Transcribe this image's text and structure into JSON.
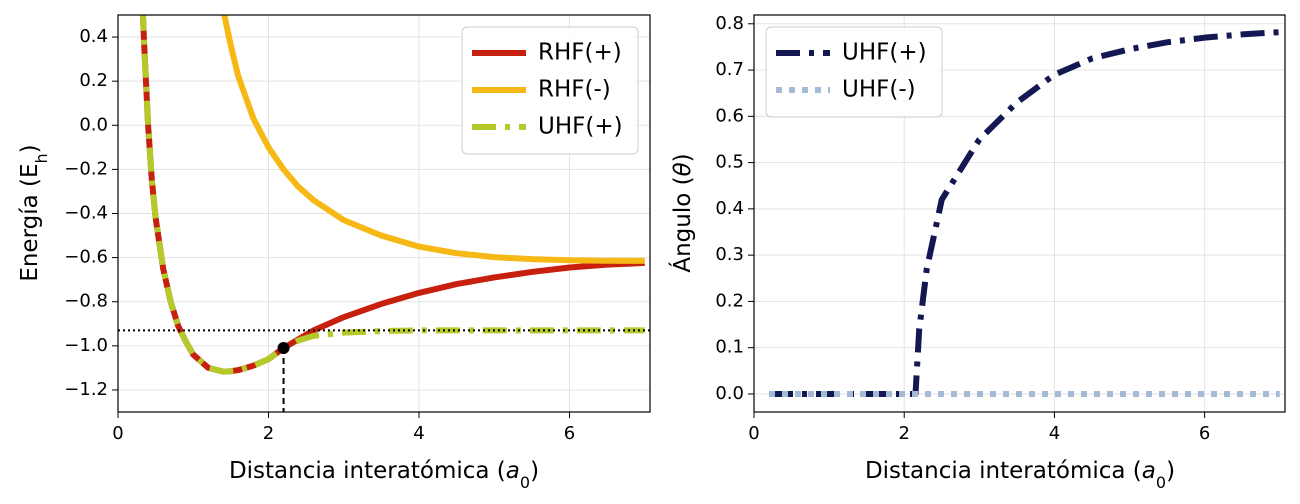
{
  "chart_data": [
    {
      "type": "line",
      "x": [
        0.3,
        0.35,
        0.4,
        0.45,
        0.5,
        0.6,
        0.7,
        0.8,
        0.9,
        1.0,
        1.2,
        1.4,
        1.5,
        1.6,
        1.8,
        2.0,
        2.2,
        2.4,
        2.6,
        3.0,
        3.5,
        4.0,
        4.5,
        5.0,
        5.5,
        6.0,
        6.5,
        7.0
      ],
      "series": [
        {
          "name": "RHF(+)",
          "color": "#c8200e",
          "style": "solid",
          "values": [
            0.75,
            0.35,
            0.0,
            -0.25,
            -0.42,
            -0.65,
            -0.8,
            -0.91,
            -0.98,
            -1.04,
            -1.1,
            -1.117,
            -1.115,
            -1.11,
            -1.09,
            -1.06,
            -1.01,
            -0.97,
            -0.93,
            -0.87,
            -0.81,
            -0.76,
            -0.72,
            -0.69,
            -0.665,
            -0.645,
            -0.632,
            -0.624
          ]
        },
        {
          "name": "RHF(-)",
          "color": "#f5b814",
          "style": "solid",
          "values": [
            null,
            null,
            null,
            null,
            null,
            null,
            null,
            null,
            null,
            null,
            null,
            0.52,
            0.36,
            0.22,
            0.03,
            -0.1,
            -0.2,
            -0.28,
            -0.34,
            -0.43,
            -0.5,
            -0.55,
            -0.58,
            -0.598,
            -0.607,
            -0.612,
            -0.614,
            -0.615
          ]
        },
        {
          "name": "UHF(+)",
          "color": "#b5c92a",
          "style": "dashdot",
          "values": [
            0.75,
            0.35,
            0.0,
            -0.25,
            -0.42,
            -0.65,
            -0.8,
            -0.91,
            -0.98,
            -1.04,
            -1.1,
            -1.117,
            -1.115,
            -1.11,
            -1.09,
            -1.06,
            -1.01,
            -0.975,
            -0.955,
            -0.94,
            -0.933,
            -0.93,
            -0.93,
            -0.93,
            -0.93,
            -0.93,
            -0.93,
            -0.93
          ]
        }
      ],
      "xlabel": [
        "Distancia interatómica (",
        "a",
        "0",
        ")"
      ],
      "ylabel": [
        "Energía (E",
        "h",
        ")"
      ],
      "xlim": [
        0,
        7.07
      ],
      "ylim": [
        -1.3,
        0.5
      ],
      "xticks": [
        0,
        2,
        4,
        6
      ],
      "yticks": [
        {
          "value": -1.2,
          "label": "−1.2"
        },
        {
          "value": -1.0,
          "label": "−1.0"
        },
        {
          "value": -0.8,
          "label": "−0.8"
        },
        {
          "value": -0.6,
          "label": "−0.6"
        },
        {
          "value": -0.4,
          "label": "−0.4"
        },
        {
          "value": -0.2,
          "label": "−0.2"
        },
        {
          "value": 0,
          "label": "0.0"
        },
        0.2,
        0.4
      ],
      "grid": true,
      "legend": "upper right",
      "hline": -0.93,
      "vline": 2.2,
      "marker": {
        "x": 2.2,
        "y": -1.01
      }
    },
    {
      "type": "line",
      "x": [
        0.2,
        0.5,
        1.0,
        1.5,
        2.0,
        2.15,
        2.2,
        2.3,
        2.5,
        3.0,
        3.5,
        4.0,
        4.5,
        5.0,
        5.5,
        6.0,
        6.5,
        7.0
      ],
      "series": [
        {
          "name": "UHF(+)",
          "color": "#141852",
          "style": "dashdot",
          "values": [
            0,
            0,
            0,
            0,
            0,
            0,
            0.14,
            0.27,
            0.42,
            0.55,
            0.63,
            0.69,
            0.725,
            0.745,
            0.76,
            0.77,
            0.777,
            0.782
          ]
        },
        {
          "name": "UHF(-)",
          "color": "#a3bbd4",
          "style": "dotted",
          "values": [
            0,
            0,
            0,
            0,
            0,
            0,
            0,
            0,
            0,
            0,
            0,
            0,
            0,
            0,
            0,
            0,
            0,
            0
          ]
        }
      ],
      "xlabel": [
        "Distancia interatómica (",
        "a",
        "0",
        ")"
      ],
      "ylabel": [
        "Ángulo (",
        "θ",
        ")"
      ],
      "xlim": [
        0,
        7.07
      ],
      "ylim": [
        -0.039,
        0.819
      ],
      "xticks": [
        0,
        2,
        4,
        6
      ],
      "yticks": [
        {
          "value": 0,
          "label": "0.0"
        },
        0.1,
        0.2,
        0.3,
        0.4,
        0.5,
        0.6,
        0.7,
        0.8
      ],
      "grid": true,
      "legend": "upper left"
    }
  ]
}
